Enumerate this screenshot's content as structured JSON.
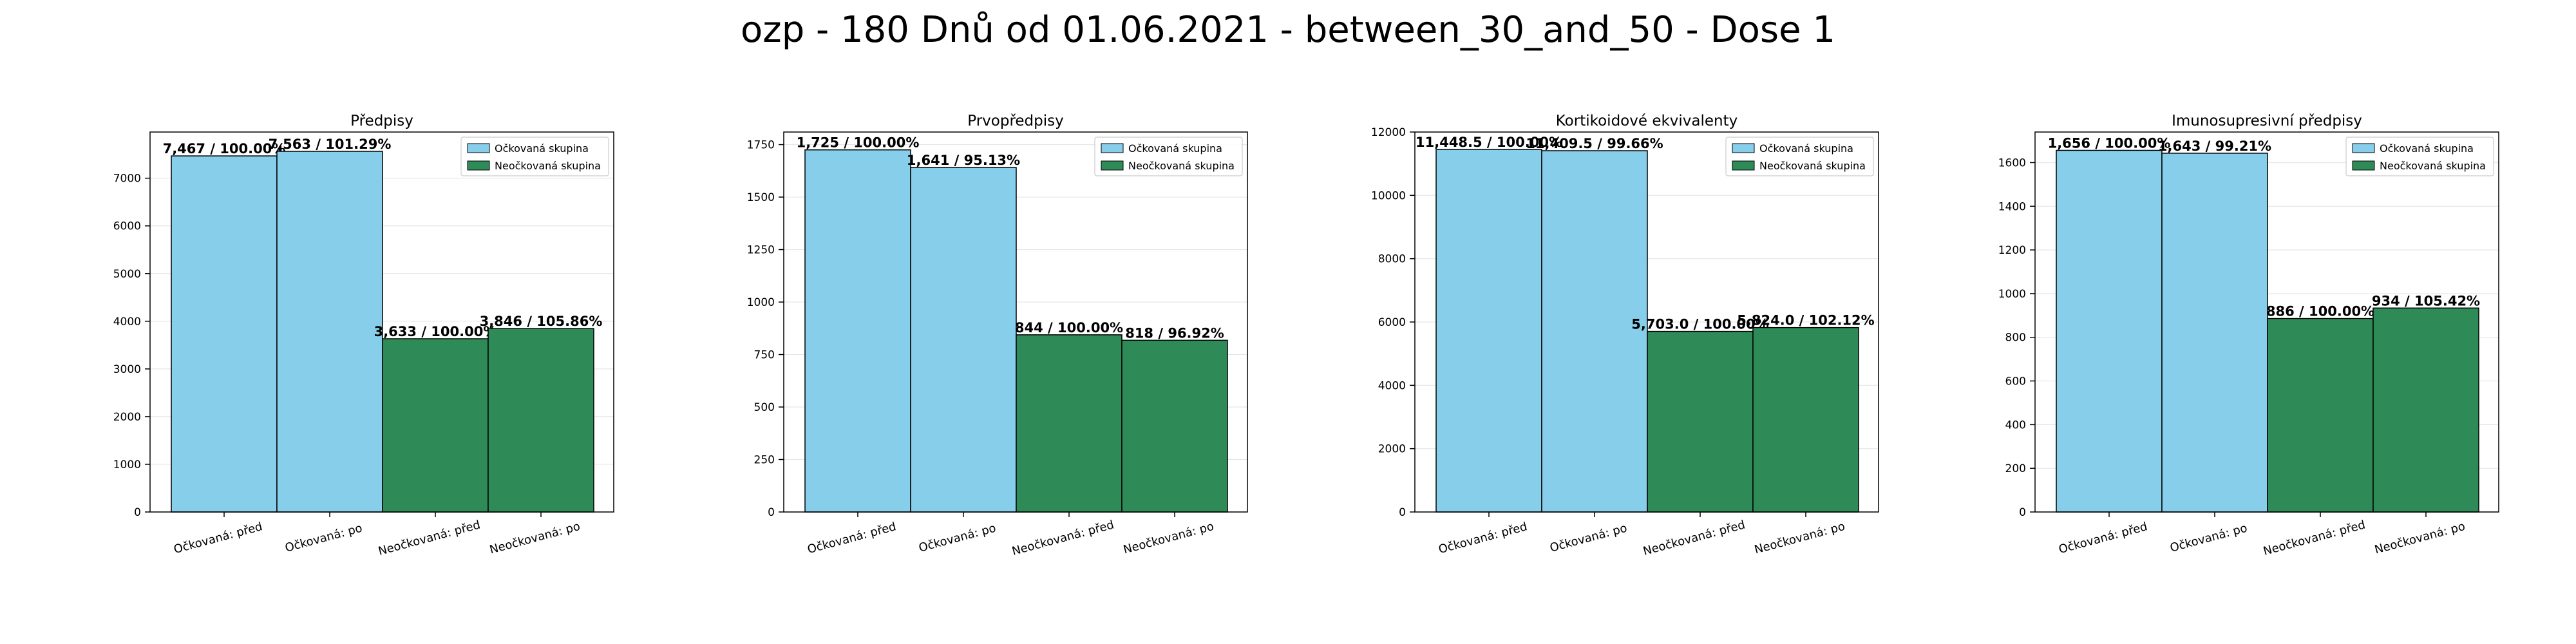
{
  "figure": {
    "title": "ozp - 180 Dnů od 01.06.2021 - between_30_and_50 - Dose 1"
  },
  "colors": {
    "vaccinated": "#87CEEB",
    "unvaccinated": "#2E8B57",
    "edge": "#000000"
  },
  "chart_data": [
    {
      "type": "bar",
      "title": "Předpisy",
      "categories": [
        "Očkovaná: před",
        "Očkovaná: po",
        "Neočkovaná: před",
        "Neočkovaná: po"
      ],
      "values": [
        7467,
        7563,
        3633,
        3846
      ],
      "labels": [
        "7,467 / 100.00%",
        "7,563 / 101.29%",
        "3,633 / 100.00%",
        "3,846 / 105.86%"
      ],
      "groups": [
        0,
        0,
        1,
        1
      ],
      "ylim": [
        0,
        7968
      ],
      "yticks": [
        0,
        1000,
        2000,
        3000,
        4000,
        5000,
        6000,
        7000
      ],
      "legend": [
        "Očkovaná skupina",
        "Neočkovaná skupina"
      ],
      "legend_position": "top-right",
      "grid": true
    },
    {
      "type": "bar",
      "title": "Prvopředpisy",
      "categories": [
        "Očkovaná: před",
        "Očkovaná: po",
        "Neočkovaná: před",
        "Neočkovaná: po"
      ],
      "values": [
        1725,
        1641,
        844,
        818
      ],
      "labels": [
        "1,725 / 100.00%",
        "1,641 / 95.13%",
        "844 / 100.00%",
        "818 / 96.92%"
      ],
      "groups": [
        0,
        0,
        1,
        1
      ],
      "ylim": [
        0,
        1810
      ],
      "yticks": [
        0,
        250,
        500,
        750,
        1000,
        1250,
        1500,
        1750
      ],
      "legend": [
        "Očkovaná skupina",
        "Neočkovaná skupina"
      ],
      "legend_position": "top-right",
      "grid": true
    },
    {
      "type": "bar",
      "title": "Kortikoidové ekvivalenty",
      "categories": [
        "Očkovaná: před",
        "Očkovaná: po",
        "Neočkovaná: před",
        "Neočkovaná: po"
      ],
      "values": [
        11448.5,
        11409.5,
        5703.0,
        5824.0
      ],
      "labels": [
        "11,448.5 / 100.00%",
        "11,409.5 / 99.66%",
        "5,703.0 / 100.00%",
        "5,824.0 / 102.12%"
      ],
      "groups": [
        0,
        0,
        1,
        1
      ],
      "ylim": [
        0,
        12000
      ],
      "yticks": [
        0,
        2000,
        4000,
        6000,
        8000,
        10000,
        12000
      ],
      "legend": [
        "Očkovaná skupina",
        "Neočkovaná skupina"
      ],
      "legend_position": "top-right",
      "grid": true
    },
    {
      "type": "bar",
      "title": "Imunosupresivní předpisy",
      "categories": [
        "Očkovaná: před",
        "Očkovaná: po",
        "Neočkovaná: před",
        "Neočkovaná: po"
      ],
      "values": [
        1656,
        1643,
        886,
        934
      ],
      "labels": [
        "1,656 / 100.00%",
        "1,643 / 99.21%",
        "886 / 100.00%",
        "934 / 105.42%"
      ],
      "groups": [
        0,
        0,
        1,
        1
      ],
      "ylim": [
        0,
        1740
      ],
      "yticks": [
        0,
        200,
        400,
        600,
        800,
        1000,
        1200,
        1400,
        1600
      ],
      "legend": [
        "Očkovaná skupina",
        "Neočkovaná skupina"
      ],
      "legend_position": "top-right",
      "grid": true
    }
  ]
}
